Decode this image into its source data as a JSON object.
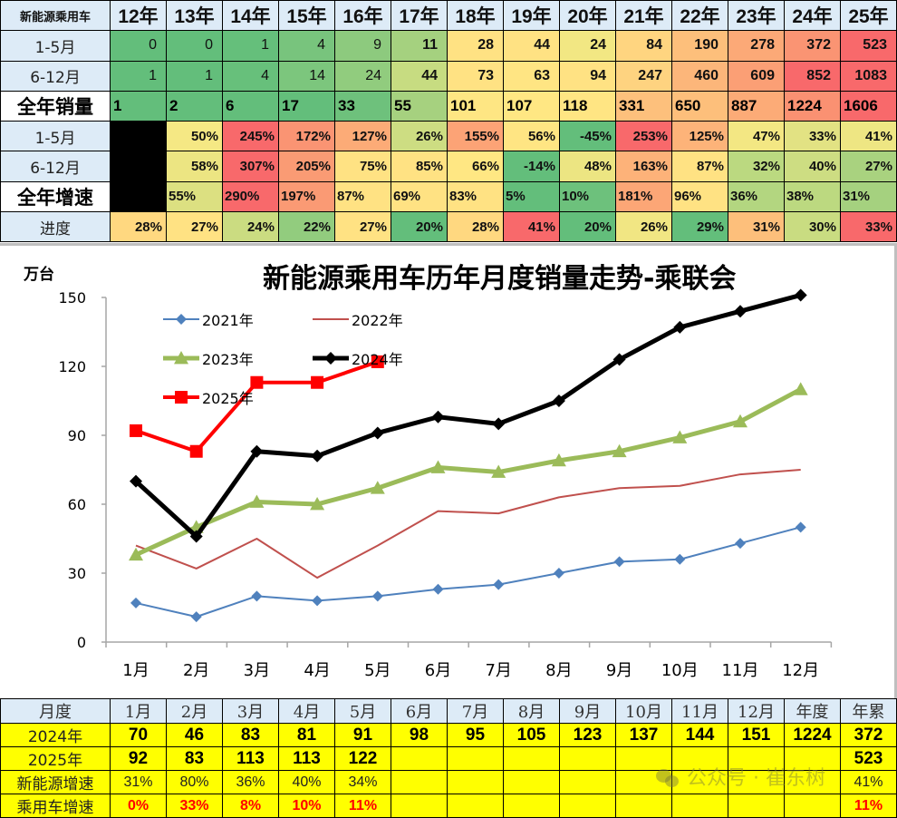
{
  "top_table": {
    "corner_label": "新能源乘用车",
    "years": [
      "12年",
      "13年",
      "14年",
      "15年",
      "16年",
      "17年",
      "18年",
      "19年",
      "20年",
      "21年",
      "22年",
      "23年",
      "24年",
      "25年"
    ],
    "rows": [
      {
        "label": "1-5月",
        "style": "rowlbl",
        "kind": "num",
        "values": [
          "0",
          "0",
          "1",
          "4",
          "9",
          "11",
          "28",
          "44",
          "24",
          "84",
          "190",
          "278",
          "372",
          "523"
        ],
        "colors": [
          "#63be7b",
          "#63be7b",
          "#65bf7b",
          "#78c47d",
          "#8dca7e",
          "#a5d17f",
          "#ffe283",
          "#ffe283",
          "#f2e783",
          "#ffd580",
          "#fdbf7b",
          "#fca977",
          "#fa9473",
          "#f8696b"
        ]
      },
      {
        "label": "6-12月",
        "style": "rowlbl",
        "kind": "num",
        "values": [
          "1",
          "1",
          "4",
          "14",
          "24",
          "44",
          "73",
          "63",
          "94",
          "247",
          "460",
          "609",
          "852",
          "1083"
        ],
        "colors": [
          "#63be7b",
          "#63be7b",
          "#67c07b",
          "#7cc67d",
          "#91cc7e",
          "#c7dc81",
          "#ffe283",
          "#ffe583",
          "#ffe283",
          "#fed380",
          "#fcb67a",
          "#fb9f75",
          "#f8696b",
          "#f8696b"
        ]
      },
      {
        "label": "全年销量",
        "style": "rowlbl-big",
        "kind": "left",
        "values": [
          "1",
          "2",
          "6",
          "17",
          "33",
          "55",
          "101",
          "107",
          "118",
          "331",
          "650",
          "887",
          "1224",
          "1606"
        ],
        "colors": [
          "#63be7b",
          "#63be7b",
          "#63be7b",
          "#63be7b",
          "#6ec17c",
          "#a6d17f",
          "#fee683",
          "#ffe783",
          "#ffe583",
          "#fdc07c",
          "#fdbf7b",
          "#fcab77",
          "#fa9172",
          "#f8696b"
        ]
      },
      {
        "label": "1-5月",
        "style": "rowlbl",
        "kind": "pct",
        "values": [
          "",
          "50%",
          "245%",
          "172%",
          "127%",
          "26%",
          "155%",
          "56%",
          "-45%",
          "253%",
          "125%",
          "47%",
          "33%",
          "41%"
        ],
        "colors": [
          "#000000",
          "#f5e884",
          "#f8696b",
          "#fa9473",
          "#fcab77",
          "#cddd82",
          "#fca376",
          "#ffe583",
          "#63be7b",
          "#f8696b",
          "#fdb379",
          "#f3e783",
          "#e2e283",
          "#eee683"
        ]
      },
      {
        "label": "6-12月",
        "style": "rowlbl",
        "kind": "pct",
        "values": [
          "",
          "58%",
          "307%",
          "205%",
          "75%",
          "85%",
          "66%",
          "-14%",
          "48%",
          "163%",
          "87%",
          "32%",
          "40%",
          "27%"
        ],
        "colors": [
          "#000000",
          "#ece582",
          "#f8696b",
          "#fa9b74",
          "#ffe283",
          "#ffe283",
          "#ffe783",
          "#63be7b",
          "#ece582",
          "#fdb279",
          "#ffe283",
          "#bbd980",
          "#cddd82",
          "#a9d27f"
        ]
      },
      {
        "label": "全年增速",
        "style": "rowlbl-big",
        "kind": "pctleft",
        "values": [
          "",
          "55%",
          "290%",
          "197%",
          "87%",
          "69%",
          "83%",
          "5%",
          "10%",
          "181%",
          "96%",
          "36%",
          "38%",
          "31%"
        ],
        "colors": [
          "#000000",
          "#dce081",
          "#f8696b",
          "#fa9a74",
          "#ffe283",
          "#ffe283",
          "#ffe283",
          "#63be7b",
          "#6dc17c",
          "#fca676",
          "#ffe283",
          "#b3d680",
          "#bcd980",
          "#a5d17f"
        ]
      },
      {
        "label": "进度",
        "style": "rowlbl",
        "kind": "pct",
        "values": [
          "28%",
          "27%",
          "24%",
          "22%",
          "27%",
          "20%",
          "28%",
          "41%",
          "20%",
          "26%",
          "29%",
          "31%",
          "30%",
          "33%"
        ],
        "colors": [
          "#ffd880",
          "#ffe283",
          "#cbdc81",
          "#92cc7e",
          "#ffe283",
          "#63be7b",
          "#ffd880",
          "#f8696b",
          "#63be7b",
          "#f1e683",
          "#63be7b",
          "#fdbf7b",
          "#c9dc81",
          "#f8696b"
        ]
      }
    ]
  },
  "chart_data": {
    "type": "line",
    "title": "新能源乘用车历年月度销量走势-乘联会",
    "ylabel": "万台",
    "xlabel": "",
    "ylim": [
      0,
      150
    ],
    "yticks": [
      0,
      30,
      60,
      90,
      120,
      150
    ],
    "categories": [
      "1月",
      "2月",
      "3月",
      "4月",
      "5月",
      "6月",
      "7月",
      "8月",
      "9月",
      "10月",
      "11月",
      "12月"
    ],
    "legend_position": "upper-left inside",
    "grid": false,
    "series": [
      {
        "name": "2021年",
        "color": "#4f81bd",
        "marker": "diamond",
        "width": 2,
        "values": [
          17,
          11,
          20,
          18,
          20,
          23,
          25,
          30,
          35,
          36,
          43,
          50
        ]
      },
      {
        "name": "2022年",
        "color": "#c0504d",
        "marker": "none",
        "width": 2,
        "values": [
          42,
          32,
          45,
          28,
          42,
          57,
          56,
          63,
          67,
          68,
          73,
          75
        ]
      },
      {
        "name": "2023年",
        "color": "#9bbb59",
        "marker": "triangle",
        "width": 5,
        "values": [
          38,
          50,
          61,
          60,
          67,
          76,
          74,
          79,
          83,
          89,
          96,
          110
        ]
      },
      {
        "name": "2024年",
        "color": "#000000",
        "marker": "diamond",
        "width": 5,
        "values": [
          70,
          46,
          83,
          81,
          91,
          98,
          95,
          105,
          123,
          137,
          144,
          151
        ]
      },
      {
        "name": "2025年",
        "color": "#ff0000",
        "marker": "square",
        "width": 4,
        "values": [
          92,
          83,
          113,
          113,
          122
        ]
      }
    ]
  },
  "bottom_table": {
    "header": [
      "月度",
      "1月",
      "2月",
      "3月",
      "4月",
      "5月",
      "6月",
      "7月",
      "8月",
      "9月",
      "10月",
      "11月",
      "12月",
      "年度",
      "年累"
    ],
    "rows": [
      {
        "label": "2024年",
        "kind": "v",
        "values": [
          "70",
          "46",
          "83",
          "81",
          "91",
          "98",
          "95",
          "105",
          "123",
          "137",
          "144",
          "151",
          "1224",
          "372"
        ]
      },
      {
        "label": "2025年",
        "kind": "v",
        "values": [
          "92",
          "83",
          "113",
          "113",
          "122",
          "",
          "",
          "",
          "",
          "",
          "",
          "",
          "",
          "523"
        ]
      },
      {
        "label": "新能源增速",
        "kind": "p",
        "values": [
          "31%",
          "80%",
          "36%",
          "40%",
          "34%",
          "",
          "",
          "",
          "",
          "",
          "",
          "",
          "",
          "41%"
        ]
      },
      {
        "label": "乘用车增速",
        "kind": "r",
        "values": [
          "0%",
          "33%",
          "8%",
          "10%",
          "11%",
          "",
          "",
          "",
          "",
          "",
          "",
          "",
          "",
          "11%"
        ]
      }
    ]
  },
  "watermark": {
    "text": "公众号 · 崔东树"
  }
}
